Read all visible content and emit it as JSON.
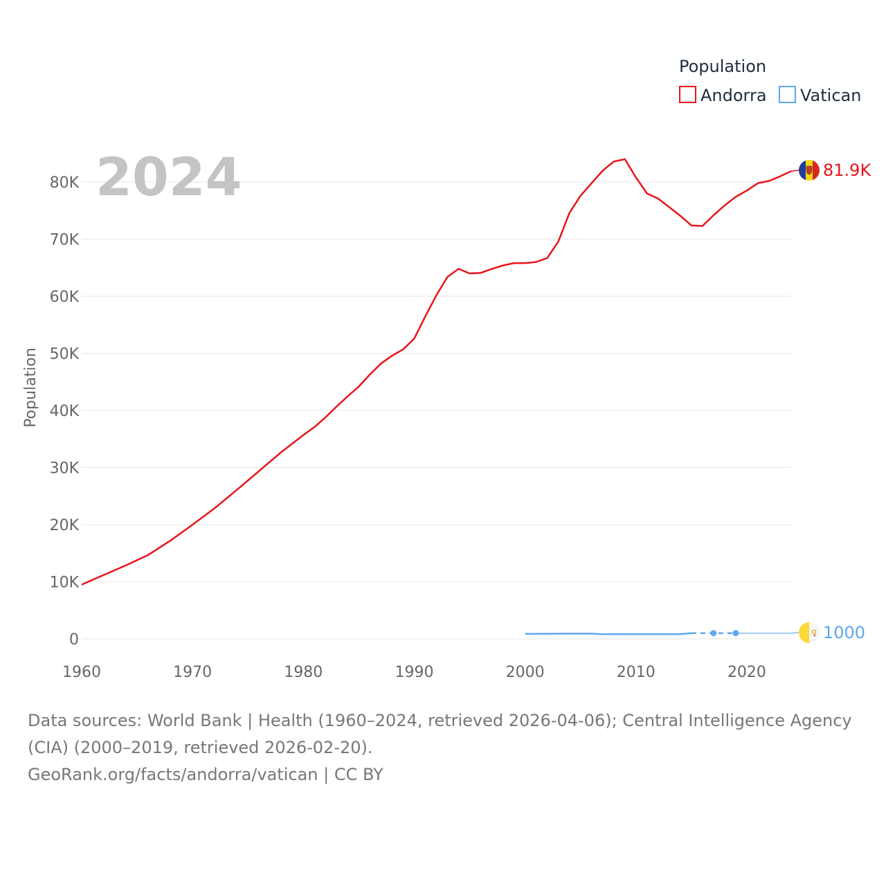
{
  "chart_data": {
    "type": "line",
    "year_label": "2024",
    "ylabel": "Population",
    "legend": {
      "title": "Population",
      "placement": "top-right"
    },
    "xlim": [
      1960,
      2024
    ],
    "ylim": [
      0,
      84000
    ],
    "x_ticks": [
      1960,
      1970,
      1980,
      1990,
      2000,
      2010,
      2020
    ],
    "y_ticks": [
      {
        "value": 0,
        "label": "0"
      },
      {
        "value": 10000,
        "label": "10K"
      },
      {
        "value": 20000,
        "label": "20K"
      },
      {
        "value": 30000,
        "label": "30K"
      },
      {
        "value": 40000,
        "label": "40K"
      },
      {
        "value": 50000,
        "label": "50K"
      },
      {
        "value": 60000,
        "label": "60K"
      },
      {
        "value": 70000,
        "label": "70K"
      },
      {
        "value": 80000,
        "label": "80K"
      }
    ],
    "grid": true,
    "series": [
      {
        "name": "Andorra",
        "color": "#e8141a",
        "icon": "andorra-flag-icon",
        "end_label": "81.9K",
        "x": [
          1960,
          1962,
          1964,
          1966,
          1968,
          1970,
          1972,
          1974,
          1976,
          1978,
          1980,
          1981,
          1982,
          1983,
          1984,
          1985,
          1986,
          1987,
          1988,
          1989,
          1990,
          1991,
          1992,
          1993,
          1994,
          1995,
          1996,
          1997,
          1998,
          1999,
          2000,
          2001,
          2002,
          2003,
          2004,
          2005,
          2006,
          2007,
          2008,
          2009,
          2010,
          2011,
          2012,
          2013,
          2014,
          2015,
          2016,
          2017,
          2018,
          2019,
          2020,
          2021,
          2022,
          2023,
          2024
        ],
        "y": [
          9500,
          11200,
          12900,
          14700,
          17200,
          20000,
          22900,
          26100,
          29400,
          32700,
          35700,
          37100,
          38800,
          40700,
          42500,
          44200,
          46300,
          48200,
          49600,
          50700,
          52600,
          56500,
          60200,
          63400,
          64800,
          64000,
          64100,
          64800,
          65400,
          65800,
          65800,
          66000,
          66700,
          69600,
          74600,
          77600,
          79800,
          82000,
          83600,
          84000,
          80800,
          78000,
          77100,
          75600,
          74100,
          72400,
          72300,
          74200,
          75900,
          77400,
          78500,
          79800,
          80200,
          81000,
          81900
        ]
      },
      {
        "name": "Vatican",
        "color": "#5fa8ee",
        "icon": "vatican-flag-icon",
        "end_label": "1000",
        "x": [
          2000,
          2002,
          2004,
          2006,
          2007,
          2010,
          2012,
          2014,
          2015
        ],
        "y": [
          890,
          900,
          920,
          920,
          830,
          840,
          840,
          840,
          1000
        ],
        "dashed_x": [
          2015,
          2017,
          2019
        ],
        "dashed_y": [
          1000,
          1000,
          1000
        ],
        "markers_x": [
          2017,
          2019
        ],
        "markers_y": [
          1000,
          1000
        ],
        "extension_x": [
          2019,
          2024
        ],
        "extension_y": [
          1000,
          1000
        ]
      }
    ]
  },
  "footer": {
    "sources": "Data sources: World Bank | Health (1960–2024, retrieved 2026-04-06); Central Intelligence Agency (CIA) (2000–2019, retrieved 2026-02-20).",
    "credit": "GeoRank.org/facts/andorra/vatican | CC BY"
  }
}
